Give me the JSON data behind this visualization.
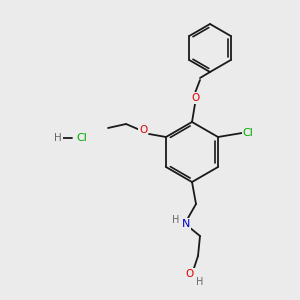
{
  "bg_color": "#ebebeb",
  "bond_color": "#1a1a1a",
  "atom_colors": {
    "O": "#e00000",
    "N": "#0000cc",
    "Cl": "#00aa00",
    "H": "#666666",
    "C": "#1a1a1a"
  },
  "font_size": 7.5,
  "lw": 1.3
}
